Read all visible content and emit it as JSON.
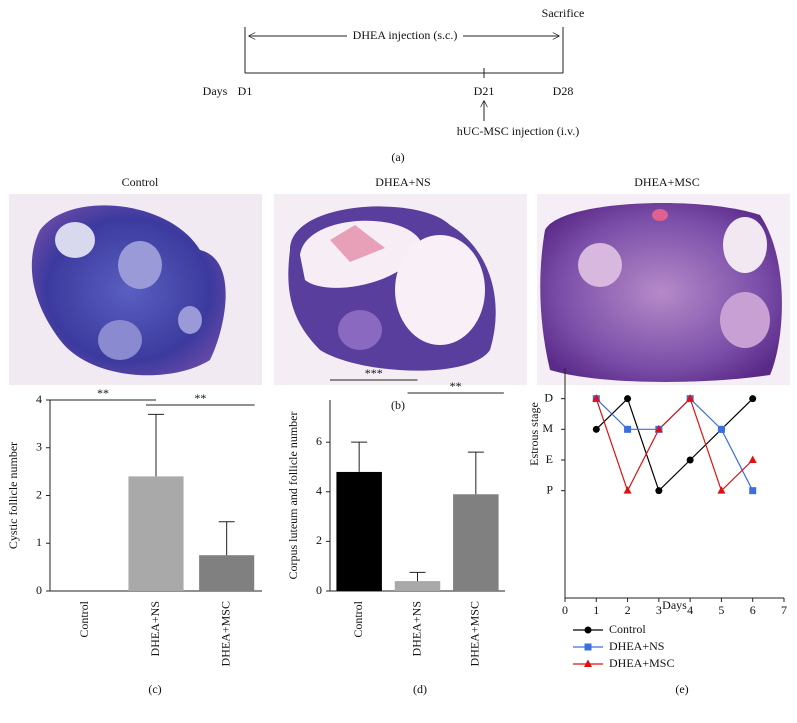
{
  "timeline": {
    "span_label": "DHEA injection (s.c.)",
    "end_label": "Sacrifice",
    "axis_label": "Days",
    "days": [
      "D1",
      "D21",
      "D28"
    ],
    "injection_label": "hUC-MSC injection (i.v.)",
    "panel": "(a)"
  },
  "images": {
    "titles": [
      "Control",
      "DHEA+NS",
      "DHEA+MSC"
    ],
    "panel": "(b)"
  },
  "chart_data": [
    {
      "type": "bar",
      "panel": "(c)",
      "y_label": "Cystic follicle number",
      "categories": [
        "Control",
        "DHEA+NS",
        "DHEA+MSC"
      ],
      "values": [
        0,
        2.4,
        0.75
      ],
      "errors": [
        0,
        1.3,
        0.7
      ],
      "colors": [
        "#111111",
        "#a9a9a9",
        "#808080"
      ],
      "ylim": [
        0,
        4
      ],
      "yticks": [
        0,
        1,
        2,
        3,
        4
      ],
      "annotations": [
        {
          "text": "**",
          "between": [
            "Control",
            "DHEA+NS"
          ]
        },
        {
          "text": "**",
          "between": [
            "DHEA+NS",
            "DHEA+MSC"
          ]
        }
      ]
    },
    {
      "type": "bar",
      "panel": "(d)",
      "y_label": "Corpus luteum and follicle number",
      "categories": [
        "Control",
        "DHEA+NS",
        "DHEA+MSC"
      ],
      "values": [
        4.8,
        0.4,
        3.9
      ],
      "errors": [
        1.2,
        0.35,
        1.7
      ],
      "colors": [
        "#000000",
        "#a9a9a9",
        "#808080"
      ],
      "ylim": [
        0,
        7.7
      ],
      "yticks": [
        0,
        2,
        4,
        6
      ],
      "annotations": [
        {
          "text": "***",
          "between": [
            "Control",
            "DHEA+NS"
          ]
        },
        {
          "text": "**",
          "between": [
            "DHEA+NS",
            "DHEA+MSC"
          ]
        }
      ]
    },
    {
      "type": "line",
      "panel": "(e)",
      "x_label": "Days",
      "y_label": "Estrous stage",
      "x": [
        1,
        2,
        3,
        4,
        5,
        6
      ],
      "xlim": [
        0,
        7
      ],
      "xticks": [
        0,
        1,
        2,
        3,
        4,
        5,
        6,
        7
      ],
      "ylim": [
        -2.5,
        5
      ],
      "yticks": [
        {
          "value": 1,
          "label": "P"
        },
        {
          "value": 2,
          "label": "E"
        },
        {
          "value": 3,
          "label": "M"
        },
        {
          "value": 4,
          "label": "D"
        }
      ],
      "series": [
        {
          "name": "Control",
          "color": "#000000",
          "marker": "circle",
          "values": [
            3,
            4,
            1,
            2,
            3,
            4
          ]
        },
        {
          "name": "DHEA+NS",
          "color": "#3a6fe0",
          "marker": "square",
          "values": [
            4,
            3,
            3,
            4,
            3,
            1
          ]
        },
        {
          "name": "DHEA+MSC",
          "color": "#e01010",
          "marker": "triangle",
          "values": [
            4,
            1,
            3,
            4,
            1,
            2
          ]
        }
      ]
    }
  ]
}
